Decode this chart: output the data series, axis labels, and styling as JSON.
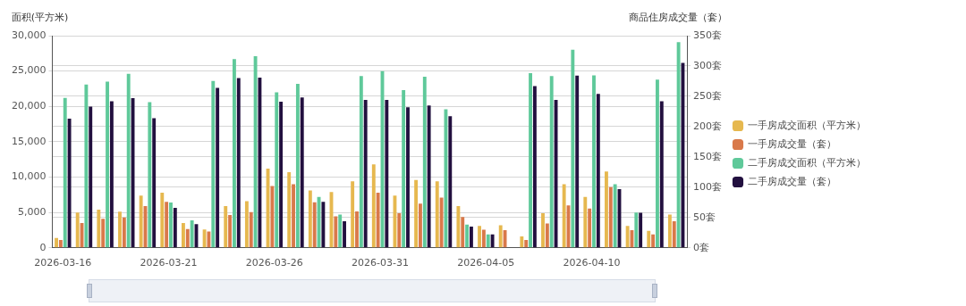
{
  "chart_data": {
    "type": "bar",
    "ylabel": "面积(平方米)",
    "y2label": "商品住房成交量（套）",
    "categories": [
      "2026-03-16",
      null,
      null,
      null,
      null,
      "2026-03-21",
      null,
      null,
      null,
      null,
      "2026-03-26",
      null,
      null,
      null,
      null,
      "2026-03-31",
      null,
      null,
      null,
      null,
      "2026-04-05",
      null,
      null,
      null,
      null,
      "2026-04-10",
      null,
      null,
      null,
      null
    ],
    "series": [
      {
        "name": "一手房成交面积（平方米）",
        "color": "#e6b84f",
        "values": [
          1400,
          5000,
          5400,
          5100,
          7400,
          7800,
          3500,
          2600,
          5900,
          6600,
          11200,
          10700,
          8100,
          7900,
          9400,
          11800,
          7400,
          9600,
          9400,
          5900,
          3100,
          3200,
          1600,
          4900,
          9000,
          7200,
          10800,
          3100,
          2400,
          4700
        ]
      },
      {
        "name": "一手房成交量（套）",
        "color": "#d9794a",
        "axis": "y2",
        "values": [
          13,
          41,
          48,
          50,
          69,
          76,
          31,
          27,
          54,
          59,
          102,
          105,
          75,
          52,
          60,
          91,
          57,
          73,
          83,
          51,
          30,
          29,
          13,
          40,
          70,
          65,
          100,
          29,
          22,
          44
        ]
      },
      {
        "name": "二手房成交面积（平方米）",
        "color": "#5fc99a",
        "values": [
          21200,
          23100,
          23500,
          24600,
          20600,
          6400,
          3900,
          23600,
          26700,
          27100,
          22000,
          23200,
          7200,
          4700,
          24300,
          25000,
          22300,
          24200,
          19600,
          3300,
          1900,
          null,
          24700,
          24300,
          28000,
          24400,
          9000,
          5000,
          23800,
          29100
        ]
      },
      {
        "name": "二手房成交量（套）",
        "color": "#22103f",
        "axis": "y2",
        "values": [
          213,
          233,
          242,
          247,
          214,
          66,
          39,
          264,
          280,
          281,
          241,
          248,
          76,
          44,
          244,
          244,
          232,
          235,
          217,
          35,
          22,
          null,
          267,
          244,
          284,
          254,
          97,
          58,
          242,
          305
        ]
      }
    ],
    "ylim": [
      0,
      30000
    ],
    "yticks": [
      0,
      {
        "value": 5000,
        "label": "5,000"
      },
      {
        "value": 10000,
        "label": "10,000"
      },
      {
        "value": 15000,
        "label": "15,000"
      },
      {
        "value": 20000,
        "label": "20,000"
      },
      {
        "value": 25000,
        "label": "25,000"
      },
      {
        "value": 30000,
        "label": "30,000"
      }
    ],
    "y2lim": [
      0,
      350
    ],
    "y2ticks": [
      {
        "value": 0,
        "label": "0套"
      },
      {
        "value": 50,
        "label": "50套"
      },
      {
        "value": 100,
        "label": "100套"
      },
      {
        "value": 150,
        "label": "150套"
      },
      {
        "value": 200,
        "label": "200套"
      },
      {
        "value": 250,
        "label": "250套"
      },
      {
        "value": 300,
        "label": "300套"
      },
      {
        "value": 350,
        "label": "350套"
      }
    ],
    "grid": true,
    "legend": "right"
  }
}
